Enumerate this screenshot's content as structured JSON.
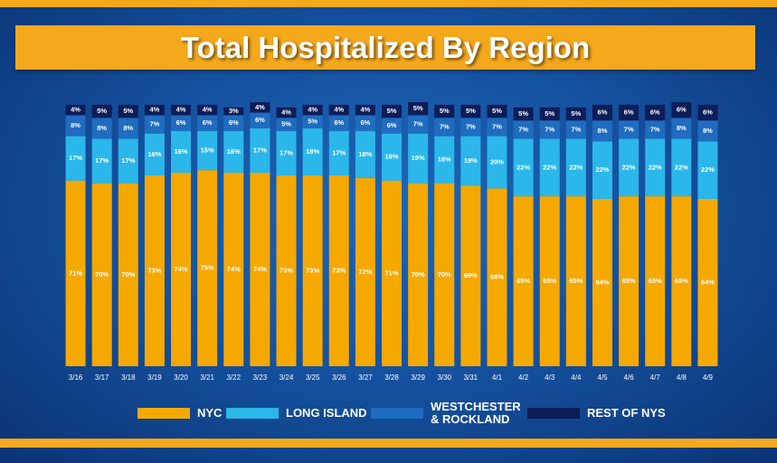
{
  "chart_data": {
    "type": "stacked-bar",
    "title": "Total Hospitalized By Region",
    "categories": [
      "3/16",
      "3/17",
      "3/18",
      "3/19",
      "3/20",
      "3/21",
      "3/22",
      "3/23",
      "3/24",
      "3/25",
      "3/26",
      "3/27",
      "3/28",
      "3/29",
      "3/30",
      "3/31",
      "4/1",
      "4/2",
      "4/3",
      "4/4",
      "4/5",
      "4/6",
      "4/7",
      "4/8",
      "4/9"
    ],
    "series": [
      {
        "name": "NYC",
        "color": "#f5a800",
        "values": [
          71,
          70,
          70,
          73,
          74,
          75,
          74,
          74,
          73,
          73,
          73,
          72,
          71,
          70,
          70,
          69,
          68,
          65,
          65,
          65,
          64,
          65,
          65,
          65,
          64
        ],
        "value_labels": [
          "71%",
          "70%",
          "70%",
          "73%",
          "74%",
          "75%",
          "74%",
          "74%",
          "73%",
          "73%",
          "73%",
          "72%",
          "71%",
          "70%",
          "70%",
          "69%",
          "68%",
          "65%",
          "65%",
          "65%",
          "64%",
          "65%",
          "65%",
          "65%",
          "64%"
        ]
      },
      {
        "name": "LONG ISLAND",
        "color": "#2bb7ea",
        "values": [
          17,
          17,
          17,
          16,
          16,
          15,
          16,
          17,
          17,
          18,
          17,
          18,
          18,
          19,
          18,
          19,
          20,
          22,
          22,
          22,
          22,
          22,
          22,
          22,
          22
        ],
        "value_labels": [
          "17%",
          "17%",
          "17%",
          "16%",
          "16%",
          "15%",
          "16%",
          "17%",
          "17%",
          "18%",
          "17%",
          "18%",
          "18%",
          "19%",
          "18%",
          "19%",
          "20%",
          "22%",
          "22%",
          "22%",
          "22%",
          "22%",
          "22%",
          "22%",
          "22%"
        ]
      },
      {
        "name": "WESTCHESTER & ROCKLAND",
        "color": "#1f6cc0",
        "values": [
          8,
          8,
          8,
          7,
          6,
          6,
          6,
          6,
          5,
          5,
          6,
          6,
          6,
          7,
          7,
          7,
          7,
          7,
          7,
          7,
          8,
          7,
          7,
          8,
          8
        ],
        "value_labels": [
          "8%",
          "8%",
          "8%",
          "7%",
          "6%",
          "6%",
          "6%",
          "6%",
          "5%",
          "5%",
          "6%",
          "6%",
          "6%",
          "7%",
          "7%",
          "7%",
          "7%",
          "7%",
          "7%",
          "7%",
          "8%",
          "7%",
          "7%",
          "8%",
          "8%"
        ]
      },
      {
        "name": "REST OF NYS",
        "color": "#0c1d58",
        "values": [
          4,
          5,
          5,
          4,
          4,
          4,
          3,
          4,
          4,
          4,
          4,
          4,
          5,
          5,
          5,
          5,
          5,
          5,
          5,
          5,
          6,
          6,
          6,
          6,
          6
        ],
        "value_labels": [
          "4%",
          "5%",
          "5%",
          "4%",
          "4%",
          "4%",
          "3%",
          "4%",
          "4%",
          "4%",
          "4%",
          "4%",
          "5%",
          "5%",
          "5%",
          "5%",
          "5%",
          "5%",
          "5%",
          "5%",
          "6%",
          "6%",
          "6%",
          "6%",
          "6%"
        ]
      }
    ]
  }
}
